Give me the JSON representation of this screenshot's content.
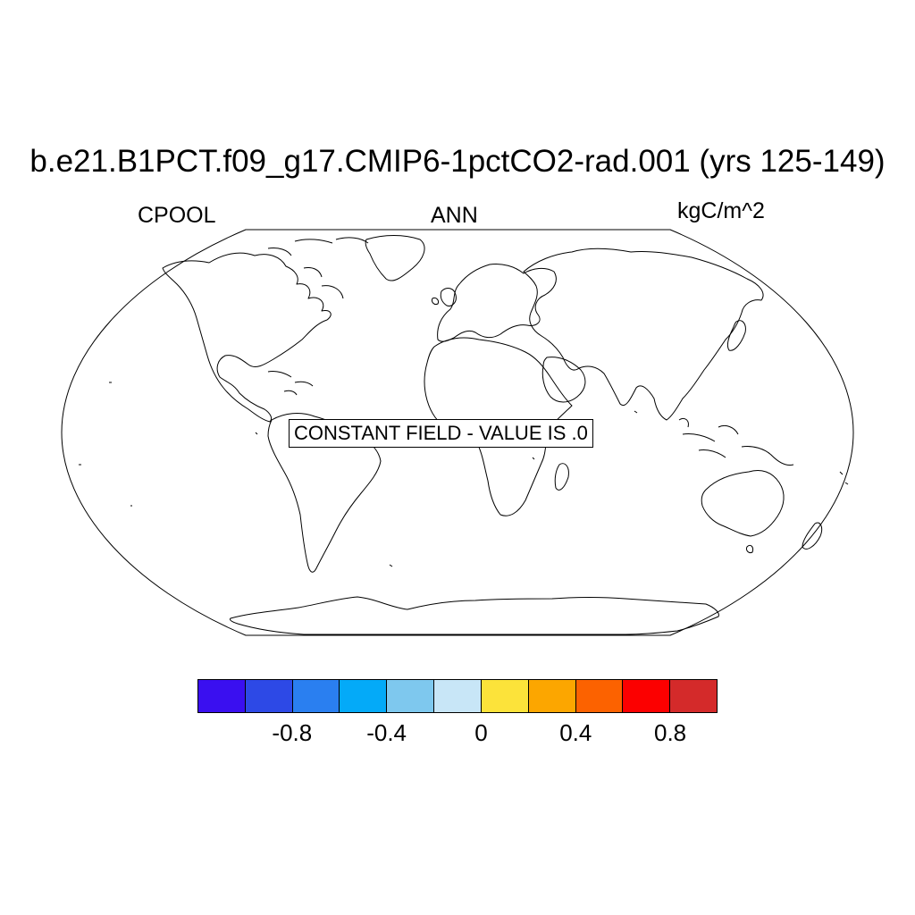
{
  "title": "b.e21.B1PCT.f09_g17.CMIP6-1pctCO2-rad.001 (yrs 125-149)",
  "left_label": "CPOOL",
  "center_label": "ANN",
  "right_label": "kgC/m^2",
  "notice": "CONSTANT FIELD - VALUE IS .0",
  "map": {
    "projection": "Robinson",
    "field_value": 0,
    "coastlines": true
  },
  "colorbar": {
    "colors": [
      "#3a0ff0",
      "#2d49e6",
      "#2a7ff0",
      "#04aaf8",
      "#7ec8ee",
      "#c8e6f7",
      "#fce33a",
      "#fca600",
      "#fc6200",
      "#fc0000",
      "#d42a2a"
    ],
    "tick_labels": [
      "-0.8",
      "-0.4",
      "0",
      "0.4",
      "0.8"
    ],
    "tick_values": [
      -0.8,
      -0.4,
      0,
      0.4,
      0.8
    ],
    "boundaries": [
      -1,
      -0.8,
      -0.6,
      -0.4,
      -0.2,
      0,
      0.2,
      0.4,
      0.6,
      0.8,
      1
    ]
  }
}
